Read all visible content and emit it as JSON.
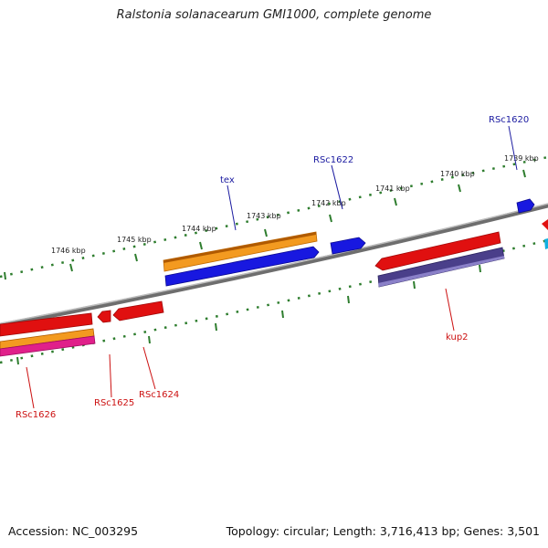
{
  "title": "Ralstonia solanacearum GMI1000, complete genome",
  "footer": {
    "accession": "Accession: NC_003295",
    "summary": "Topology: circular; Length: 3,716,413 bp; Genes: 3,501"
  },
  "colors": {
    "backbone": "#808080",
    "tick": "#2e7d2e",
    "forward_label": "#1a1aa0",
    "reverse_label": "#cc1111",
    "red": "#e01010",
    "blue": "#1818e0",
    "orange": "#f08a10",
    "purple": "#4a3f8a",
    "magenta": "#e0208a",
    "cyan": "#10b0e0"
  },
  "ticks": [
    {
      "label": "1739 kbp"
    },
    {
      "label": "1740 kbp"
    },
    {
      "label": "1741 kbp"
    },
    {
      "label": "1742 kbp"
    },
    {
      "label": "1743 kbp"
    },
    {
      "label": "1744 kbp"
    },
    {
      "label": "1745 kbp"
    },
    {
      "label": "1746 kbp"
    }
  ],
  "gene_labels": {
    "RSc1620": "RSc1620",
    "RSc1622": "RSc1622",
    "tex": "tex",
    "kup2": "kup2",
    "RSc1624": "RSc1624",
    "RSc1625": "RSc1625",
    "RSc1626": "RSc1626"
  }
}
